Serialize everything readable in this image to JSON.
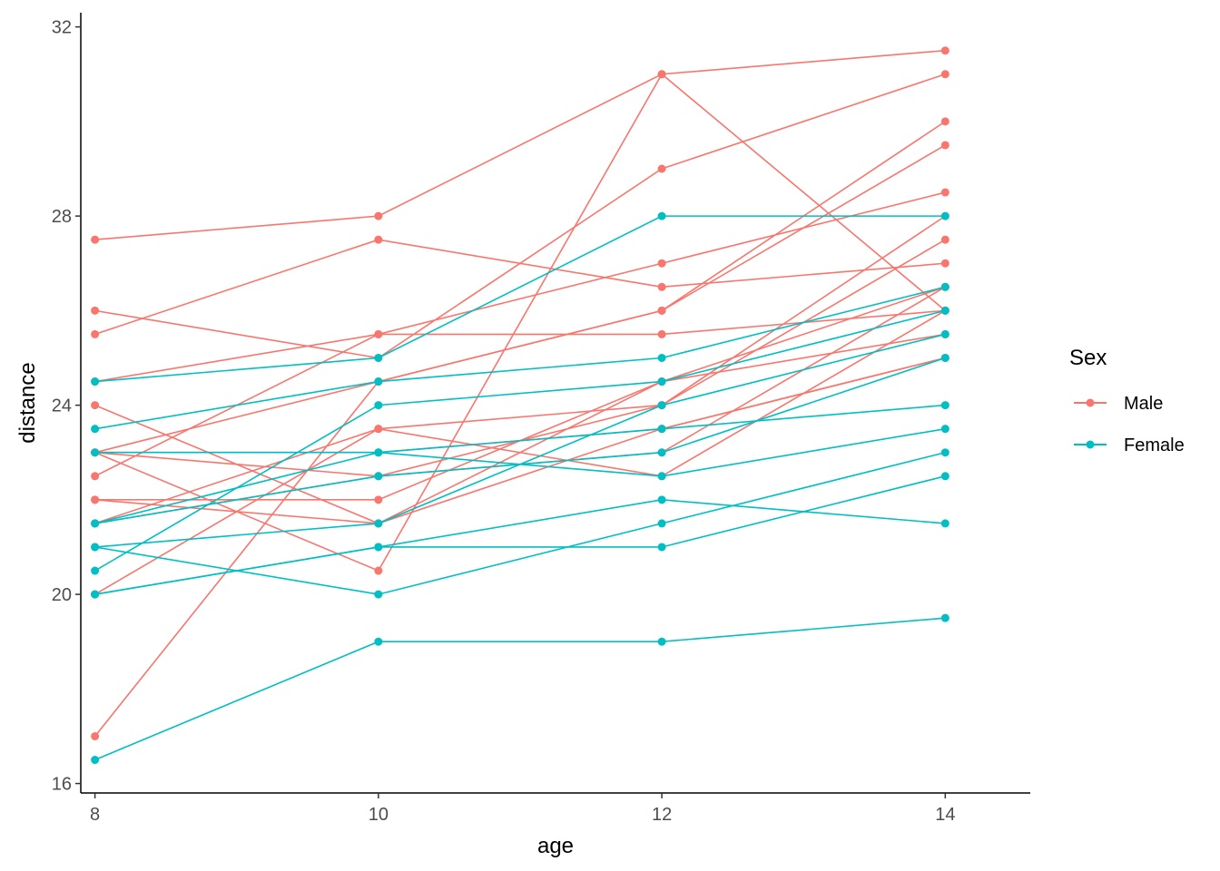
{
  "chart_data": {
    "type": "line",
    "xlabel": "age",
    "ylabel": "distance",
    "x": [
      8,
      10,
      12,
      14
    ],
    "xlim": [
      7.9,
      14.6
    ],
    "ylim": [
      15.8,
      32.3
    ],
    "x_ticks": [
      8,
      10,
      12,
      14
    ],
    "y_ticks": [
      16,
      20,
      24,
      28,
      32
    ],
    "grid": false,
    "legend": {
      "title": "Sex",
      "position": "right",
      "entries": [
        {
          "label": "Male",
          "color": "#F8766D"
        },
        {
          "label": "Female",
          "color": "#00BFC4"
        }
      ]
    },
    "series": [
      {
        "group": "Male",
        "values": [
          26,
          25,
          29,
          31
        ]
      },
      {
        "group": "Male",
        "values": [
          21.5,
          22.5,
          23,
          26.5
        ]
      },
      {
        "group": "Male",
        "values": [
          23,
          22.5,
          24,
          27.5
        ]
      },
      {
        "group": "Male",
        "values": [
          25.5,
          27.5,
          26.5,
          27
        ]
      },
      {
        "group": "Male",
        "values": [
          20,
          23.5,
          22.5,
          26
        ]
      },
      {
        "group": "Male",
        "values": [
          24.5,
          25.5,
          27,
          28.5
        ]
      },
      {
        "group": "Male",
        "values": [
          22,
          22,
          24.5,
          26.5
        ]
      },
      {
        "group": "Male",
        "values": [
          24,
          21.5,
          24.5,
          25.5
        ]
      },
      {
        "group": "Male",
        "values": [
          23,
          20.5,
          31,
          26
        ]
      },
      {
        "group": "Male",
        "values": [
          27.5,
          28,
          31,
          31.5
        ]
      },
      {
        "group": "Male",
        "values": [
          23,
          23,
          23.5,
          25
        ]
      },
      {
        "group": "Male",
        "values": [
          21.5,
          23.5,
          24,
          28
        ]
      },
      {
        "group": "Male",
        "values": [
          17,
          24.5,
          26,
          29.5
        ]
      },
      {
        "group": "Male",
        "values": [
          22.5,
          25.5,
          25.5,
          26
        ]
      },
      {
        "group": "Male",
        "values": [
          23,
          24.5,
          26,
          30
        ]
      },
      {
        "group": "Male",
        "values": [
          22,
          21.5,
          23.5,
          25
        ]
      },
      {
        "group": "Female",
        "values": [
          21,
          20,
          21.5,
          23
        ]
      },
      {
        "group": "Female",
        "values": [
          21,
          21.5,
          24,
          25.5
        ]
      },
      {
        "group": "Female",
        "values": [
          20.5,
          24,
          24.5,
          26
        ]
      },
      {
        "group": "Female",
        "values": [
          23.5,
          24.5,
          25,
          26.5
        ]
      },
      {
        "group": "Female",
        "values": [
          21.5,
          23,
          22.5,
          23.5
        ]
      },
      {
        "group": "Female",
        "values": [
          20,
          21,
          21,
          22.5
        ]
      },
      {
        "group": "Female",
        "values": [
          21.5,
          22.5,
          23,
          25
        ]
      },
      {
        "group": "Female",
        "values": [
          23,
          23,
          23.5,
          24
        ]
      },
      {
        "group": "Female",
        "values": [
          20,
          21,
          22,
          21.5
        ]
      },
      {
        "group": "Female",
        "values": [
          16.5,
          19,
          19,
          19.5
        ]
      },
      {
        "group": "Female",
        "values": [
          24.5,
          25,
          28,
          28
        ]
      }
    ]
  }
}
